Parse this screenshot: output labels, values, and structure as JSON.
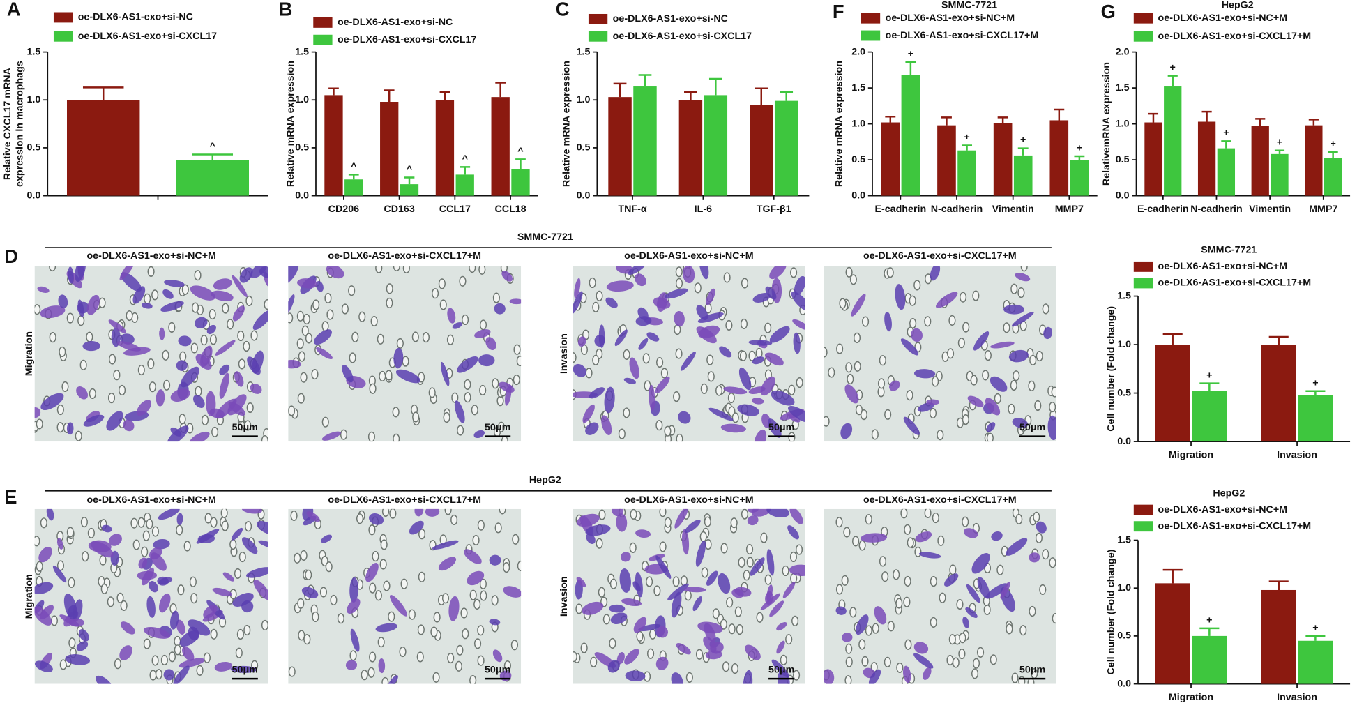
{
  "chart_data": [
    {
      "type": "bar",
      "panel": "A",
      "ylabel": [
        "Relative CXCL17 mRNA",
        "expression in macrophags"
      ],
      "categories": [
        null
      ],
      "series": [
        {
          "name": "oe-DLX6-AS1-exo+si-NC",
          "color": "#8b1a10",
          "values": [
            1.0
          ],
          "errors": [
            0.13
          ]
        },
        {
          "name": "oe-DLX6-AS1-exo+si-CXCL17",
          "color": "#3ec63e",
          "values": [
            0.37
          ],
          "errors": [
            0.06
          ],
          "markers": [
            "^"
          ]
        }
      ],
      "ylim": [
        0,
        1.5
      ],
      "yticks": [
        {
          "value": 0,
          "label": "0.0"
        },
        0.5,
        {
          "value": 1,
          "label": "1.0"
        },
        1.5
      ]
    },
    {
      "type": "bar",
      "panel": "B",
      "ylabel": [
        "Relative mRNA expression"
      ],
      "categories": [
        "CD206",
        "CD163",
        "CCL17",
        "CCL18"
      ],
      "series": [
        {
          "name": "oe-DLX6-AS1-exo+si-NC",
          "color": "#8b1a10",
          "values": [
            1.05,
            0.98,
            1.0,
            1.03
          ],
          "errors": [
            0.07,
            0.12,
            0.08,
            0.15
          ]
        },
        {
          "name": "oe-DLX6-AS1-exo+si-CXCL17",
          "color": "#3ec63e",
          "values": [
            0.17,
            0.12,
            0.22,
            0.28
          ],
          "errors": [
            0.05,
            0.07,
            0.08,
            0.1
          ],
          "markers": [
            "^",
            "^",
            "^",
            "^"
          ]
        }
      ],
      "ylim": [
        0,
        1.5
      ],
      "yticks": [
        {
          "value": 0,
          "label": "0.0"
        },
        0.5,
        {
          "value": 1,
          "label": "1.0"
        },
        1.5
      ]
    },
    {
      "type": "bar",
      "panel": "C",
      "ylabel": [
        "Relative mRNA expression"
      ],
      "categories": [
        "TNF-α",
        "IL-6",
        "TGF-β1"
      ],
      "series": [
        {
          "name": "oe-DLX6-AS1-exo+si-NC",
          "color": "#8b1a10",
          "values": [
            1.03,
            1.0,
            0.95
          ],
          "errors": [
            0.14,
            0.08,
            0.17
          ]
        },
        {
          "name": "oe-DLX6-AS1-exo+si-CXCL17",
          "color": "#3ec63e",
          "values": [
            1.14,
            1.05,
            0.99
          ],
          "errors": [
            0.12,
            0.17,
            0.09
          ]
        }
      ],
      "ylim": [
        0,
        1.5
      ],
      "yticks": [
        {
          "value": 0,
          "label": "0.0"
        },
        0.5,
        {
          "value": 1,
          "label": "1.0"
        },
        1.5
      ]
    },
    {
      "type": "bar",
      "panel": "F",
      "title": "SMMC-7721",
      "ylabel": [
        "Relative mRNA expression"
      ],
      "categories": [
        "E-cadherin",
        "N-cadherin",
        "Vimentin",
        "MMP7"
      ],
      "series": [
        {
          "name": "oe-DLX6-AS1-exo+si-NC+M",
          "color": "#8b1a10",
          "values": [
            1.02,
            0.98,
            1.01,
            1.05
          ],
          "errors": [
            0.08,
            0.11,
            0.08,
            0.15
          ]
        },
        {
          "name": "oe-DLX6-AS1-exo+si-CXCL17+M",
          "color": "#3ec63e",
          "values": [
            1.68,
            0.63,
            0.56,
            0.5
          ],
          "errors": [
            0.18,
            0.07,
            0.1,
            0.05
          ],
          "markers": [
            "+",
            "+",
            "+",
            "+"
          ]
        }
      ],
      "ylim": [
        0,
        2
      ],
      "yticks": [
        {
          "value": 0,
          "label": "0.0"
        },
        0.5,
        {
          "value": 1,
          "label": "1.0"
        },
        1.5,
        {
          "value": 2,
          "label": "2.0"
        }
      ]
    },
    {
      "type": "bar",
      "panel": "G",
      "title": "HepG2",
      "ylabel": [
        "RelativemRNA expression"
      ],
      "categories": [
        "E-cadherin",
        "N-cadherin",
        "Vimentin",
        "MMP7"
      ],
      "series": [
        {
          "name": "oe-DLX6-AS1-exo+si-NC+M",
          "color": "#8b1a10",
          "values": [
            1.02,
            1.03,
            0.97,
            0.98
          ],
          "errors": [
            0.12,
            0.14,
            0.1,
            0.08
          ]
        },
        {
          "name": "oe-DLX6-AS1-exo+si-CXCL17+M",
          "color": "#3ec63e",
          "values": [
            1.52,
            0.66,
            0.58,
            0.53
          ],
          "errors": [
            0.15,
            0.1,
            0.05,
            0.08
          ],
          "markers": [
            "+",
            "+",
            "+",
            "+"
          ]
        }
      ],
      "ylim": [
        0,
        2
      ],
      "yticks": [
        {
          "value": 0,
          "label": "0.0"
        },
        0.5,
        {
          "value": 1,
          "label": "1.0"
        },
        1.5,
        {
          "value": 2,
          "label": "2.0"
        }
      ]
    },
    {
      "type": "bar",
      "title": "SMMC-7721",
      "ylabel": [
        "Cell number (Fold change)"
      ],
      "categories": [
        "Migration",
        "Invasion"
      ],
      "series": [
        {
          "name": "oe-DLX6-AS1-exo+si-NC+M",
          "color": "#8b1a10",
          "values": [
            1.0,
            1.0
          ],
          "errors": [
            0.11,
            0.08
          ]
        },
        {
          "name": "oe-DLX6-AS1-exo+si-CXCL17+M",
          "color": "#3ec63e",
          "values": [
            0.52,
            0.48
          ],
          "errors": [
            0.08,
            0.04
          ],
          "markers": [
            "+",
            "+"
          ]
        }
      ],
      "ylim": [
        0,
        1.5
      ],
      "yticks": [
        {
          "value": 0,
          "label": "0.0"
        },
        0.5,
        {
          "value": 1,
          "label": "1.0"
        },
        1.5
      ]
    },
    {
      "type": "bar",
      "title": "HepG2",
      "ylabel": [
        "Cell number (Fold change)"
      ],
      "categories": [
        "Migration",
        "Invasion"
      ],
      "series": [
        {
          "name": "oe-DLX6-AS1-exo+si-NC+M",
          "color": "#8b1a10",
          "values": [
            1.05,
            0.98
          ],
          "errors": [
            0.14,
            0.09
          ]
        },
        {
          "name": "oe-DLX6-AS1-exo+si-CXCL17+M",
          "color": "#3ec63e",
          "values": [
            0.5,
            0.45
          ],
          "errors": [
            0.08,
            0.05
          ],
          "markers": [
            "+",
            "+"
          ]
        }
      ],
      "ylim": [
        0,
        1.5
      ],
      "yticks": [
        {
          "value": 0,
          "label": "0.0"
        },
        0.5,
        {
          "value": 1,
          "label": "1.0"
        },
        1.5
      ]
    }
  ],
  "micrographs": [
    {
      "panel": "D",
      "title": "SMMC-7721",
      "columns": [
        "oe-DLX6-AS1-exo+si-NC+M",
        "oe-DLX6-AS1-exo+si-CXCL17+M",
        "oe-DLX6-AS1-exo+si-NC+M",
        "oe-DLX6-AS1-exo+si-CXCL17+M"
      ],
      "side_labels": [
        "Migration",
        "Invasion"
      ],
      "scale_bars": [
        "50μm",
        "50μm",
        "50μm",
        "50μm"
      ]
    },
    {
      "panel": "E",
      "title": "HepG2",
      "columns": [
        "oe-DLX6-AS1-exo+si-NC+M",
        "oe-DLX6-AS1-exo+si-CXCL17+M",
        "oe-DLX6-AS1-exo+si-NC+M",
        "oe-DLX6-AS1-exo+si-CXCL17+M"
      ],
      "side_labels": [
        "Migration",
        "Invasion"
      ],
      "scale_bars": [
        "50μm",
        "50μm",
        "50μm",
        "50μm"
      ]
    }
  ]
}
